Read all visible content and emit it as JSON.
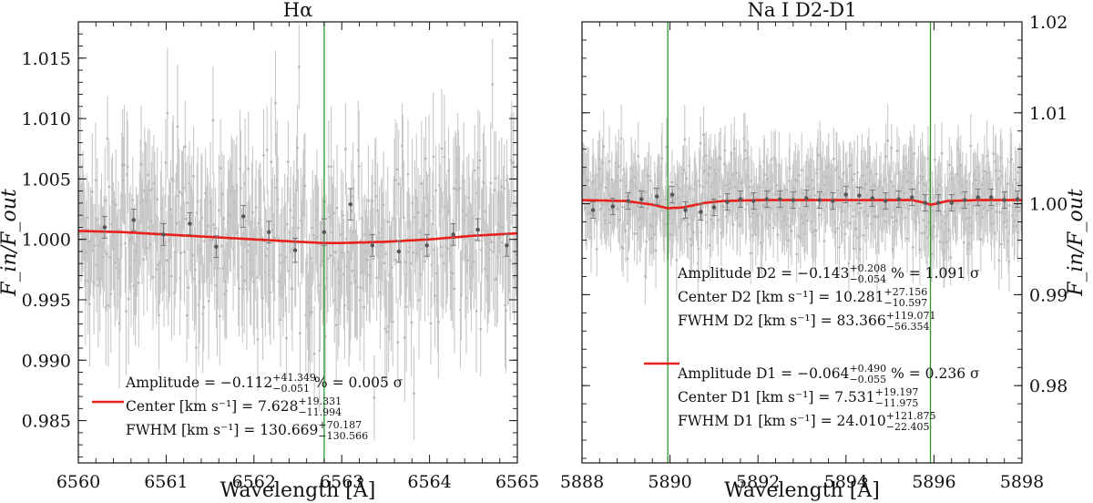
{
  "chart_data": [
    {
      "type": "scatter",
      "title": "Hα",
      "xlabel": "Wavelength [Å]",
      "ylabel": "F_in/F_out",
      "xlim": [
        6560,
        6565
      ],
      "ylim": [
        0.9815,
        1.018
      ],
      "xticks": [
        "6560",
        "6561",
        "6562",
        "6563",
        "6564",
        "6565"
      ],
      "yticks": [
        "0.985",
        "0.990",
        "0.995",
        "1.000",
        "1.005",
        "1.010",
        "1.015"
      ],
      "line_centers": [
        6562.8
      ],
      "model_line": {
        "x": [
          6560.0,
          6560.5,
          6561.0,
          6561.5,
          6562.0,
          6562.5,
          6562.8,
          6563.0,
          6563.5,
          6564.0,
          6564.5,
          6565.0
        ],
        "y": [
          1.0007,
          1.0006,
          1.0004,
          1.0002,
          1.0,
          0.9998,
          0.9997,
          0.9997,
          0.9998,
          1.0,
          1.0003,
          1.0005
        ]
      },
      "binned_points": {
        "x": [
          6560.3,
          6560.63,
          6560.97,
          6561.27,
          6561.57,
          6561.88,
          6562.17,
          6562.47,
          6562.8,
          6563.1,
          6563.35,
          6563.65,
          6563.97,
          6564.27,
          6564.55,
          6564.88
        ],
        "y": [
          1.001,
          1.0016,
          1.0004,
          1.0013,
          0.9994,
          1.0019,
          1.0006,
          0.9991,
          1.0006,
          1.0029,
          0.9995,
          0.999,
          0.9995,
          1.0004,
          1.0008,
          0.9995
        ],
        "yerr": [
          0.0009,
          0.0009,
          0.0009,
          0.0009,
          0.0009,
          0.0009,
          0.0009,
          0.001,
          0.0011,
          0.0013,
          0.0009,
          0.0009,
          0.0009,
          0.0009,
          0.0009,
          0.0009
        ]
      },
      "annotations": [
        {
          "main": "Amplitude = −0.112",
          "sup": "+41.349",
          "sub": "−0.051",
          "tail": " % = 0.005 σ"
        },
        {
          "main": "Center [km s⁻¹] = 7.628",
          "sup": "+19.331",
          "sub": "−11.994",
          "tail": ""
        },
        {
          "main": "FWHM [km s⁻¹] = 130.669",
          "sup": "+70.187",
          "sub": "−130.566",
          "tail": ""
        }
      ]
    },
    {
      "type": "scatter",
      "title": "Na I D2-D1",
      "xlabel": "Wavelength [Å]",
      "ylabel": "F_in/F_out",
      "yaxis_side": "right",
      "xlim": [
        5888,
        5898
      ],
      "ylim": [
        0.9715,
        1.02
      ],
      "xticks": [
        "5888",
        "5890",
        "5892",
        "5894",
        "5896",
        "5898"
      ],
      "yticks": [
        "0.98",
        "0.99",
        "1.00",
        "1.01",
        "1.02"
      ],
      "line_centers": [
        5889.95,
        5895.92
      ],
      "model_line": {
        "x": [
          5888.0,
          5889.0,
          5889.6,
          5889.95,
          5890.3,
          5890.8,
          5891.2,
          5892.0,
          5894.0,
          5895.5,
          5895.8,
          5895.92,
          5896.05,
          5896.3,
          5897.0,
          5898.0
        ],
        "y": [
          1.0004,
          1.0003,
          0.9999,
          0.9995,
          0.9996,
          1.0001,
          1.0003,
          1.0004,
          1.0004,
          1.0004,
          1.0001,
          0.9999,
          1.0,
          1.0003,
          1.0004,
          1.0004
        ]
      },
      "binned_points": {
        "x": [
          5888.25,
          5888.7,
          5889.05,
          5889.35,
          5889.7,
          5890.05,
          5890.35,
          5890.7,
          5891.0,
          5891.3,
          5891.6,
          5891.9,
          5892.2,
          5892.5,
          5892.8,
          5893.1,
          5893.4,
          5893.7,
          5894.0,
          5894.3,
          5894.6,
          5894.9,
          5895.2,
          5895.5,
          5895.8,
          5896.1,
          5896.4,
          5896.7,
          5897.0,
          5897.3,
          5897.6,
          5897.9
        ],
        "y": [
          0.9993,
          0.9997,
          1.0003,
          1.0005,
          1.0008,
          1.001,
          0.9993,
          0.9991,
          0.9996,
          1.0002,
          1.0005,
          1.0003,
          1.0005,
          1.0005,
          1.0004,
          1.0006,
          1.0004,
          1.0003,
          1.001,
          1.0009,
          1.0006,
          1.0003,
          1.0005,
          1.0007,
          1.0001,
          1.0001,
          1.0001,
          1.0004,
          1.0007,
          1.0007,
          1.0004,
          1.0005
        ],
        "yerr": [
          0.0009,
          0.0009,
          0.0009,
          0.0009,
          0.0009,
          0.0009,
          0.0009,
          0.0009,
          0.0009,
          0.0009,
          0.0009,
          0.0009,
          0.0009,
          0.0009,
          0.0009,
          0.0009,
          0.0009,
          0.0009,
          0.0009,
          0.0009,
          0.0009,
          0.0009,
          0.0009,
          0.0009,
          0.0009,
          0.0009,
          0.0009,
          0.0009,
          0.0009,
          0.0009,
          0.0009,
          0.0009
        ]
      },
      "annotations": [
        {
          "main": "Amplitude D2 = −0.143",
          "sup": "+0.208",
          "sub": "−0.054",
          "tail": " % = 1.091 σ"
        },
        {
          "main": "Center D2 [km s⁻¹] = 10.281",
          "sup": "+27.156",
          "sub": "−10.597",
          "tail": ""
        },
        {
          "main": "FWHM D2 [km s⁻¹] = 83.366",
          "sup": "+119.071",
          "sub": "−56.354",
          "tail": ""
        },
        {
          "main": "Amplitude D1 = −0.064",
          "sup": "+0.490",
          "sub": "−0.055",
          "tail": " % = 0.236 σ"
        },
        {
          "main": "Center D1 [km s⁻¹] = 7.531",
          "sup": "+19.197",
          "sub": "−11.975",
          "tail": ""
        },
        {
          "main": "FWHM D1 [km s⁻¹] = 24.010",
          "sup": "+121.875",
          "sub": "−22.405",
          "tail": ""
        }
      ]
    }
  ],
  "colors": {
    "model": "#e8201a",
    "line_center": "#2a9a2a",
    "raw_points": "#c8c8c8",
    "binned": "#555555"
  }
}
